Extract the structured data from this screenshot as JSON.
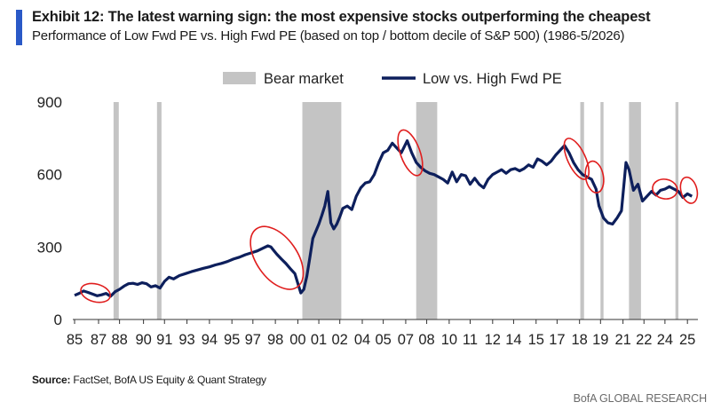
{
  "header": {
    "title": "Exhibit 12: The latest warning sign: the most expensive stocks outperforming the cheapest",
    "subtitle": "Performance of Low Fwd PE vs. High Fwd PE (based on top / bottom decile of S&P 500) (1986-5/2026)",
    "accent_color": "#2a59c7"
  },
  "footer": {
    "source_label": "Source:",
    "source_text": " FactSet, BofA US Equity & Quant Strategy",
    "brand": "BofA GLOBAL RESEARCH"
  },
  "chart_data": {
    "type": "line",
    "legend": {
      "position": "top",
      "bear_label": "Bear market",
      "series_label": "Low vs. High Fwd PE"
    },
    "colors": {
      "line": "#0d1f5c",
      "bear": "#c4c4c4",
      "circle": "#e01e1e",
      "axis": "#333333"
    },
    "x_tick_labels": [
      "85",
      "87",
      "88",
      "90",
      "91",
      "93",
      "94",
      "95",
      "97",
      "98",
      "00",
      "01",
      "02",
      "04",
      "05",
      "07",
      "08",
      "10",
      "11",
      "12",
      "14",
      "15",
      "17",
      "18",
      "19",
      "21",
      "22",
      "24",
      "25"
    ],
    "x_tick_years": [
      1985,
      1986.6,
      1988,
      1989.6,
      1991,
      1992.5,
      1994,
      1995.5,
      1996.9,
      1998.4,
      1999.9,
      2001.3,
      2002.7,
      2004.2,
      2005.6,
      2007.1,
      2008.5,
      2010,
      2011.4,
      2012.9,
      2014.3,
      2015.8,
      2017.2,
      2018.7,
      2020.1,
      2021.6,
      2023,
      2024.4,
      2025.9
    ],
    "xlim": [
      1985,
      2026.6
    ],
    "ylim": [
      0,
      900
    ],
    "y_ticks": [
      0,
      300,
      600,
      900
    ],
    "bear_markets": [
      [
        1987.6,
        1987.95
      ],
      [
        1990.5,
        1990.8
      ],
      [
        2000.2,
        2002.8
      ],
      [
        2007.8,
        2009.2
      ],
      [
        2018.75,
        2019.0
      ],
      [
        2020.1,
        2020.3
      ],
      [
        2022.0,
        2022.8
      ],
      [
        2025.1,
        2025.3
      ]
    ],
    "series": [
      {
        "x": [
          1985.0,
          1985.3,
          1985.6,
          1985.9,
          1986.2,
          1986.5,
          1986.8,
          1987.1,
          1987.4,
          1987.7,
          1988.0,
          1988.3,
          1988.6,
          1988.9,
          1989.2,
          1989.5,
          1989.8,
          1990.1,
          1990.4,
          1990.7,
          1991.0,
          1991.3,
          1991.6,
          1992.0,
          1992.4,
          1992.8,
          1993.2,
          1993.6,
          1994.0,
          1994.4,
          1994.8,
          1995.2,
          1995.6,
          1996.0,
          1996.4,
          1996.8,
          1997.2,
          1997.6,
          1997.9,
          1998.1,
          1998.3,
          1998.5,
          1998.8,
          1999.1,
          1999.4,
          1999.7,
          1999.9,
          2000.1,
          2000.3,
          2000.5,
          2000.7,
          2000.9,
          2001.1,
          2001.3,
          2001.5,
          2001.7,
          2001.9,
          2002.1,
          2002.3,
          2002.5,
          2002.7,
          2002.9,
          2003.2,
          2003.5,
          2003.8,
          2004.1,
          2004.4,
          2004.7,
          2005.0,
          2005.3,
          2005.6,
          2005.9,
          2006.2,
          2006.5,
          2006.8,
          2007.0,
          2007.2,
          2007.5,
          2007.8,
          2008.1,
          2008.4,
          2008.7,
          2009.0,
          2009.3,
          2009.6,
          2009.9,
          2010.2,
          2010.5,
          2010.8,
          2011.1,
          2011.4,
          2011.7,
          2012.0,
          2012.3,
          2012.6,
          2012.9,
          2013.2,
          2013.5,
          2013.8,
          2014.1,
          2014.4,
          2014.7,
          2015.0,
          2015.3,
          2015.6,
          2015.9,
          2016.2,
          2016.5,
          2016.8,
          2017.1,
          2017.4,
          2017.7,
          2018.0,
          2018.3,
          2018.6,
          2018.9,
          2019.2,
          2019.5,
          2019.8,
          2020.0,
          2020.3,
          2020.6,
          2020.9,
          2021.2,
          2021.5,
          2021.8,
          2022.0,
          2022.3,
          2022.6,
          2022.9,
          2023.2,
          2023.5,
          2023.8,
          2024.1,
          2024.4,
          2024.7,
          2025.0,
          2025.3,
          2025.6,
          2025.9,
          2026.2
        ],
        "y": [
          100,
          108,
          118,
          112,
          105,
          98,
          102,
          108,
          96,
          115,
          125,
          138,
          148,
          150,
          145,
          152,
          148,
          135,
          140,
          130,
          158,
          175,
          168,
          182,
          190,
          198,
          205,
          212,
          218,
          226,
          232,
          240,
          250,
          258,
          268,
          276,
          284,
          296,
          305,
          300,
          285,
          270,
          250,
          232,
          210,
          190,
          150,
          110,
          125,
          180,
          255,
          335,
          365,
          395,
          430,
          470,
          530,
          400,
          375,
          395,
          425,
          460,
          470,
          455,
          510,
          545,
          565,
          570,
          600,
          650,
          690,
          700,
          730,
          710,
          690,
          715,
          740,
          690,
          650,
          630,
          615,
          605,
          600,
          590,
          580,
          565,
          610,
          570,
          600,
          595,
          560,
          585,
          560,
          545,
          580,
          600,
          610,
          620,
          605,
          620,
          625,
          615,
          625,
          640,
          630,
          665,
          655,
          640,
          655,
          680,
          700,
          720,
          690,
          650,
          620,
          600,
          590,
          580,
          540,
          470,
          420,
          400,
          395,
          420,
          450,
          650,
          620,
          535,
          560,
          490,
          510,
          530,
          515,
          535,
          540,
          550,
          540,
          530,
          505,
          520,
          510
        ]
      }
    ]
  }
}
